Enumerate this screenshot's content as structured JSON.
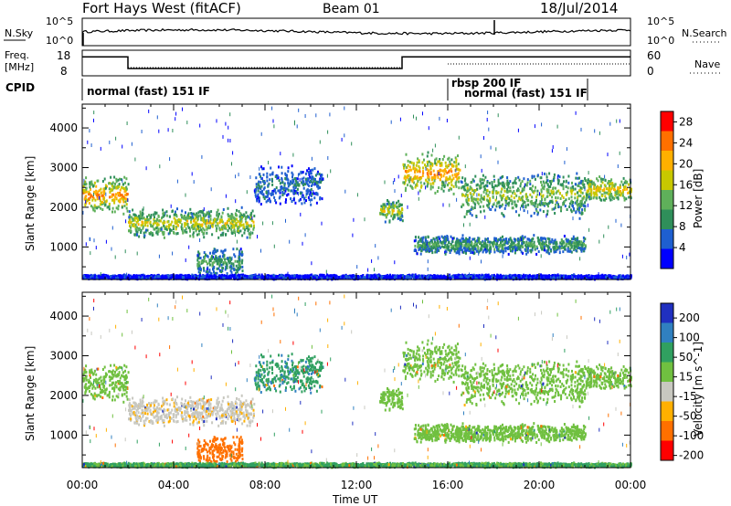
{
  "header": {
    "station": "Fort Hays West (fitACF)",
    "beam": "Beam 01",
    "date": "18/Jul/2014"
  },
  "top_panels": {
    "nsky_label": "N.Sky",
    "nsearch_label": "N.Search",
    "noise_ticks": [
      "10^5",
      "10^0"
    ],
    "freq_label_line1": "Freq.",
    "freq_label_line2": "[MHz]",
    "freq_ticks": [
      "18",
      "8"
    ],
    "nave_label": "Nave",
    "nave_ticks": [
      "60",
      "0"
    ],
    "cpid_label": "CPID",
    "cpid_segments": [
      {
        "label": "normal (fast) 151 IF",
        "start_hour": 0,
        "end_hour": 16
      },
      {
        "label": "rbsp 200 IF",
        "start_hour": 16,
        "end_hour": 22
      },
      {
        "label": "normal (fast) 151 IF",
        "start_hour": 16,
        "end_hour": 22
      }
    ],
    "freq_segments": [
      {
        "start_hour": 0,
        "end_hour": 2.0,
        "mhz": 15.8
      },
      {
        "start_hour": 2.0,
        "end_hour": 14.0,
        "mhz": 10.5
      },
      {
        "start_hour": 14.0,
        "end_hour": 24,
        "mhz": 15.8
      }
    ]
  },
  "chart_data": [
    {
      "type": "heatmap",
      "title": "",
      "xlabel": "",
      "ylabel": "Slant Range [km]",
      "xlim_hours": [
        0,
        24
      ],
      "ylim": [
        180,
        4600
      ],
      "yticks": [
        1000,
        2000,
        3000,
        4000
      ],
      "colorbar_label": "Power [dB]",
      "colorbar_ticks": [
        4,
        8,
        12,
        16,
        20,
        24,
        28
      ],
      "colorbar_range": [
        0,
        30
      ],
      "colormap": [
        "#0000ff",
        "#1e5fd0",
        "#2f8f5a",
        "#5fb05a",
        "#c8c800",
        "#ffb000",
        "#ff7000",
        "#ff0000"
      ],
      "features": [
        {
          "t0": 0.0,
          "t1": 2.0,
          "r0": 1800,
          "r1": 2800,
          "peak_db": 24
        },
        {
          "t0": 2.0,
          "t1": 7.5,
          "r0": 1200,
          "r1": 2000,
          "peak_db": 18
        },
        {
          "t0": 5.0,
          "t1": 7.0,
          "r0": 200,
          "r1": 1000,
          "peak_db": 12
        },
        {
          "t0": 7.5,
          "t1": 10.5,
          "r0": 2000,
          "r1": 3100,
          "peak_db": 8
        },
        {
          "t0": 13.0,
          "t1": 14.0,
          "r0": 1600,
          "r1": 2200,
          "peak_db": 18
        },
        {
          "t0": 14.0,
          "t1": 16.5,
          "r0": 2300,
          "r1": 3400,
          "peak_db": 24
        },
        {
          "t0": 16.5,
          "t1": 22.0,
          "r0": 1700,
          "r1": 2900,
          "peak_db": 16
        },
        {
          "t0": 14.5,
          "t1": 22.0,
          "r0": 800,
          "r1": 1300,
          "peak_db": 12
        },
        {
          "t0": 22.0,
          "t1": 24.0,
          "r0": 2100,
          "r1": 2800,
          "peak_db": 20
        },
        {
          "t0": 0.0,
          "t1": 24.0,
          "r0": 180,
          "r1": 300,
          "peak_db": 4
        }
      ]
    },
    {
      "type": "heatmap",
      "title": "",
      "xlabel": "Time UT",
      "ylabel": "Slant Range [km]",
      "xlim_hours": [
        0,
        24
      ],
      "xticks": [
        "00:00",
        "04:00",
        "08:00",
        "12:00",
        "16:00",
        "20:00",
        "00:00"
      ],
      "ylim": [
        180,
        4600
      ],
      "yticks": [
        1000,
        2000,
        3000,
        4000
      ],
      "colorbar_label": "Velocity [m s^-1]",
      "colorbar_ticks": [
        200,
        100,
        50,
        15,
        -15,
        -50,
        -100,
        -200
      ],
      "colormap": [
        "#2030c0",
        "#3080c0",
        "#30a060",
        "#70c040",
        "#c8c8c0",
        "#ffb000",
        "#ff7000",
        "#ff0000"
      ],
      "features": [
        {
          "t0": 0.0,
          "t1": 2.0,
          "r0": 1800,
          "r1": 2800,
          "velocity": 0
        },
        {
          "t0": 2.0,
          "t1": 7.5,
          "r0": 1200,
          "r1": 2000,
          "velocity": -40
        },
        {
          "t0": 5.0,
          "t1": 7.0,
          "r0": 200,
          "r1": 1000,
          "velocity": -180
        },
        {
          "t0": 7.5,
          "t1": 10.5,
          "r0": 2000,
          "r1": 3100,
          "velocity": 40
        },
        {
          "t0": 13.0,
          "t1": 14.0,
          "r0": 1600,
          "r1": 2200,
          "velocity": 0
        },
        {
          "t0": 14.0,
          "t1": 16.5,
          "r0": 2300,
          "r1": 3400,
          "velocity": 0
        },
        {
          "t0": 16.5,
          "t1": 22.0,
          "r0": 1700,
          "r1": 2900,
          "velocity": 0
        },
        {
          "t0": 14.5,
          "t1": 22.0,
          "r0": 800,
          "r1": 1300,
          "velocity": 0
        },
        {
          "t0": 22.0,
          "t1": 24.0,
          "r0": 2100,
          "r1": 2800,
          "velocity": 0
        },
        {
          "t0": 0.0,
          "t1": 24.0,
          "r0": 180,
          "r1": 300,
          "velocity": 20
        }
      ]
    }
  ]
}
